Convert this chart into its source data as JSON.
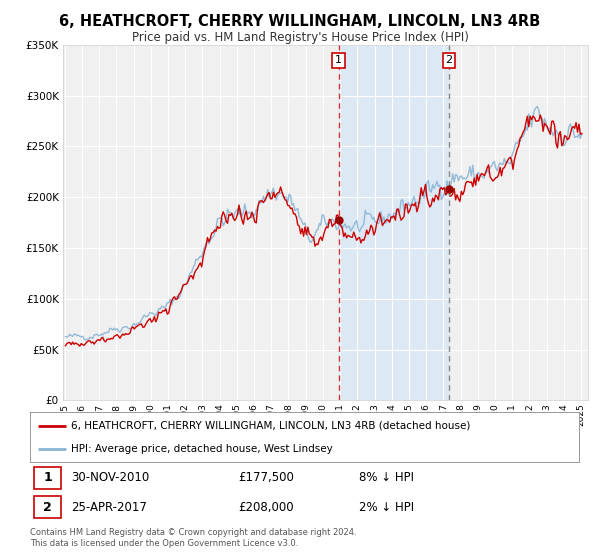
{
  "title": "6, HEATHCROFT, CHERRY WILLINGHAM, LINCOLN, LN3 4RB",
  "subtitle": "Price paid vs. HM Land Registry's House Price Index (HPI)",
  "background_color": "#ffffff",
  "plot_bg_color": "#f0f0f0",
  "shade_color": "#dce9f5",
  "grid_color": "#ffffff",
  "hpi_line_color": "#8ab4d4",
  "price_line_color": "#cc0000",
  "dot_color": "#990000",
  "vline1_color": "#cc3333",
  "vline2_color": "#888888",
  "ylim": [
    0,
    350000
  ],
  "yticks": [
    0,
    50000,
    100000,
    150000,
    200000,
    250000,
    300000,
    350000
  ],
  "ytick_labels": [
    "£0",
    "£50K",
    "£100K",
    "£150K",
    "£200K",
    "£250K",
    "£300K",
    "£350K"
  ],
  "xlim_start": 1994.9,
  "xlim_end": 2025.4,
  "sale1_x": 2010.92,
  "sale1_y": 177500,
  "sale1_label": "1",
  "sale1_date": "30-NOV-2010",
  "sale1_price": "£177,500",
  "sale1_hpi": "8% ↓ HPI",
  "sale2_x": 2017.32,
  "sale2_y": 208000,
  "sale2_label": "2",
  "sale2_date": "25-APR-2017",
  "sale2_price": "£208,000",
  "sale2_hpi": "2% ↓ HPI",
  "legend_line1": "6, HEATHCROFT, CHERRY WILLINGHAM, LINCOLN, LN3 4RB (detached house)",
  "legend_line2": "HPI: Average price, detached house, West Lindsey",
  "footnote": "Contains HM Land Registry data © Crown copyright and database right 2024.\nThis data is licensed under the Open Government Licence v3.0."
}
